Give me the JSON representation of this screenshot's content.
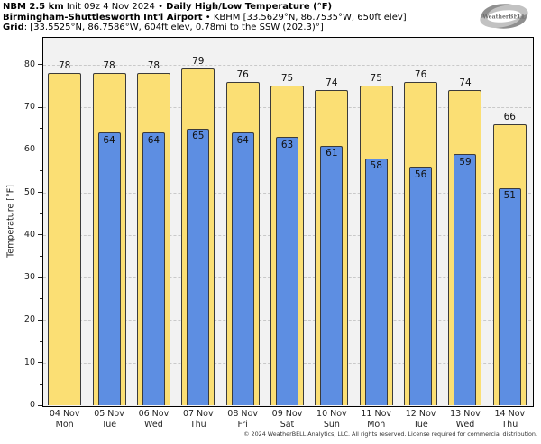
{
  "header": {
    "line1_bold1": "NBM 2.5 km",
    "line1_mid": " Init 09z 4 Nov 2024 • ",
    "line1_bold2": "Daily High/Low Temperature (°F)",
    "line2_bold": "Birmingham-Shuttlesworth Int'l Airport",
    "line2_rest": " • KBHM [33.5629°N, 86.7535°W, 650ft elev]",
    "line3_bold": "Grid",
    "line3_rest": ": [33.5525°N, 86.7586°W, 604ft elev, 0.78mi to the SSW (202.3)°]"
  },
  "logo": {
    "text": "WeatherBELL"
  },
  "footer": {
    "copyright": "© 2024 WeatherBELL Analytics, LLC. All rights reserved. License required for commercial distribution."
  },
  "colors": {
    "high_bar": "#fbdf74",
    "low_bar": "#5d8ee2",
    "bar_border": "#3b3b3b",
    "plot_background": "#f2f2f2",
    "grid": "#c9c9c9",
    "frame": "#000000"
  },
  "chart_data": {
    "type": "bar",
    "title": "NBM 2.5 km Daily High/Low Temperature (°F) — KBHM Birmingham-Shuttlesworth Int'l Airport",
    "xlabel": "",
    "ylabel": "Temperature [°F]",
    "ylim": [
      0,
      86.5
    ],
    "yticks": [
      0,
      10,
      20,
      30,
      40,
      50,
      60,
      70,
      80
    ],
    "grid": "horizontal-dashed",
    "legend_position": "none",
    "categories": [
      "04 Nov",
      "05 Nov",
      "06 Nov",
      "07 Nov",
      "08 Nov",
      "09 Nov",
      "10 Nov",
      "11 Nov",
      "12 Nov",
      "13 Nov",
      "14 Nov"
    ],
    "weekdays": [
      "Mon",
      "Tue",
      "Wed",
      "Thu",
      "Fri",
      "Sat",
      "Sun",
      "Mon",
      "Tue",
      "Wed",
      "Thu"
    ],
    "series": [
      {
        "name": "Daily High",
        "color": "#fbdf74",
        "values": [
          78,
          78,
          78,
          79,
          76,
          75,
          74,
          75,
          76,
          74,
          66
        ]
      },
      {
        "name": "Daily Low",
        "color": "#5d8ee2",
        "values": [
          null,
          64,
          64,
          65,
          64,
          63,
          61,
          58,
          56,
          59,
          51
        ]
      }
    ]
  }
}
